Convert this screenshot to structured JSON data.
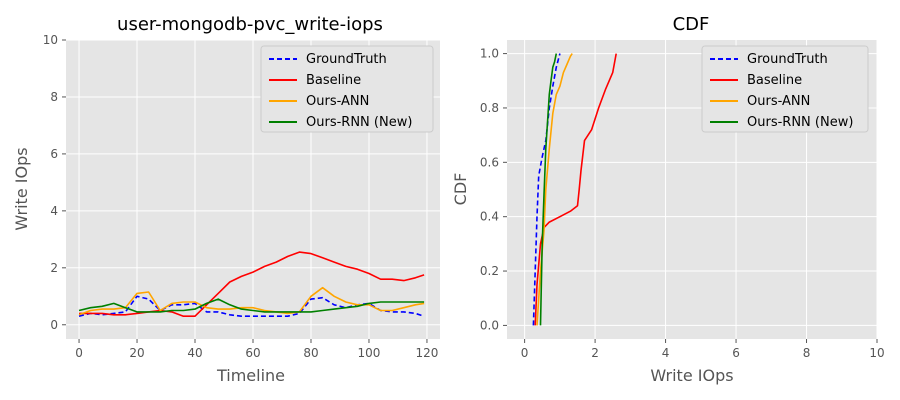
{
  "colors": {
    "background": "#e5e5e5",
    "grid": "#ffffff",
    "GroundTruth": "#0000ff",
    "Baseline": "#ff0000",
    "Ours-ANN": "#ffa500",
    "Ours-RNN (New)": "#008000"
  },
  "chart_data": [
    {
      "type": "line",
      "title": "user-mongodb-pvc_write-iops",
      "xlabel": "Timeline",
      "ylabel": "Write IOps",
      "xlim": [
        -4.5,
        124.5
      ],
      "ylim": [
        -0.5,
        10
      ],
      "xticks": [
        0,
        20,
        40,
        60,
        80,
        100,
        120
      ],
      "yticks": [
        0,
        2,
        4,
        6,
        8,
        10
      ],
      "grid": true,
      "legend": "top-right",
      "x": [
        0,
        4,
        8,
        12,
        16,
        20,
        24,
        28,
        32,
        36,
        40,
        44,
        48,
        52,
        56,
        60,
        64,
        68,
        72,
        76,
        80,
        84,
        88,
        92,
        96,
        100,
        104,
        108,
        112,
        116,
        119
      ],
      "series": [
        {
          "name": "GroundTruth",
          "style": "dashed",
          "values": [
            0.3,
            0.4,
            0.35,
            0.4,
            0.45,
            1.0,
            0.9,
            0.5,
            0.7,
            0.7,
            0.75,
            0.45,
            0.45,
            0.35,
            0.3,
            0.3,
            0.3,
            0.3,
            0.3,
            0.4,
            0.9,
            0.95,
            0.7,
            0.6,
            0.7,
            0.75,
            0.5,
            0.45,
            0.45,
            0.4,
            0.3
          ]
        },
        {
          "name": "Baseline",
          "style": "solid",
          "values": [
            0.4,
            0.4,
            0.4,
            0.35,
            0.35,
            0.4,
            0.45,
            0.5,
            0.45,
            0.3,
            0.3,
            0.7,
            1.1,
            1.5,
            1.7,
            1.85,
            2.05,
            2.2,
            2.4,
            2.55,
            2.5,
            2.35,
            2.2,
            2.05,
            1.95,
            1.8,
            1.6,
            1.6,
            1.55,
            1.65,
            1.75
          ]
        },
        {
          "name": "Ours-ANN",
          "style": "solid",
          "values": [
            0.35,
            0.5,
            0.55,
            0.55,
            0.6,
            1.1,
            1.15,
            0.5,
            0.75,
            0.8,
            0.8,
            0.6,
            0.55,
            0.55,
            0.6,
            0.6,
            0.5,
            0.45,
            0.4,
            0.45,
            1.0,
            1.3,
            1.0,
            0.8,
            0.7,
            0.7,
            0.5,
            0.5,
            0.6,
            0.7,
            0.75
          ]
        },
        {
          "name": "Ours-RNN (New)",
          "style": "solid",
          "values": [
            0.5,
            0.6,
            0.65,
            0.75,
            0.6,
            0.45,
            0.45,
            0.45,
            0.5,
            0.5,
            0.55,
            0.75,
            0.9,
            0.7,
            0.55,
            0.5,
            0.45,
            0.45,
            0.45,
            0.45,
            0.45,
            0.5,
            0.55,
            0.6,
            0.65,
            0.75,
            0.8,
            0.8,
            0.8,
            0.8,
            0.8
          ]
        }
      ]
    },
    {
      "type": "line",
      "title": "CDF",
      "xlabel": "Write IOps",
      "ylabel": "CDF",
      "xlim": [
        -0.5,
        10
      ],
      "ylim": [
        -0.05,
        1.05
      ],
      "xticks": [
        0,
        2,
        4,
        6,
        8,
        10
      ],
      "yticks": [
        0.0,
        0.2,
        0.4,
        0.6,
        0.8,
        1.0
      ],
      "grid": true,
      "legend": "top-right",
      "series": [
        {
          "name": "GroundTruth",
          "style": "dashed",
          "x": [
            0.25,
            0.3,
            0.35,
            0.4,
            0.5,
            0.6,
            0.7,
            0.8,
            0.9,
            1.0
          ],
          "y": [
            0.0,
            0.2,
            0.4,
            0.55,
            0.62,
            0.68,
            0.8,
            0.88,
            0.95,
            1.0
          ]
        },
        {
          "name": "Baseline",
          "style": "solid",
          "x": [
            0.3,
            0.35,
            0.45,
            0.55,
            0.7,
            1.0,
            1.3,
            1.5,
            1.55,
            1.6,
            1.7,
            1.9,
            2.1,
            2.3,
            2.5,
            2.6
          ],
          "y": [
            0.0,
            0.15,
            0.3,
            0.36,
            0.38,
            0.4,
            0.42,
            0.44,
            0.5,
            0.57,
            0.68,
            0.72,
            0.8,
            0.87,
            0.93,
            1.0
          ]
        },
        {
          "name": "Ours-ANN",
          "style": "solid",
          "x": [
            0.35,
            0.45,
            0.55,
            0.6,
            0.7,
            0.8,
            0.9,
            1.0,
            1.1,
            1.2,
            1.3,
            1.35
          ],
          "y": [
            0.0,
            0.2,
            0.35,
            0.5,
            0.65,
            0.78,
            0.85,
            0.88,
            0.93,
            0.96,
            0.99,
            1.0
          ]
        },
        {
          "name": "Ours-RNN (New)",
          "style": "solid",
          "x": [
            0.45,
            0.5,
            0.55,
            0.6,
            0.7,
            0.75,
            0.8,
            0.85,
            0.9
          ],
          "y": [
            0.0,
            0.3,
            0.48,
            0.65,
            0.85,
            0.9,
            0.95,
            0.97,
            1.0
          ]
        }
      ]
    }
  ]
}
